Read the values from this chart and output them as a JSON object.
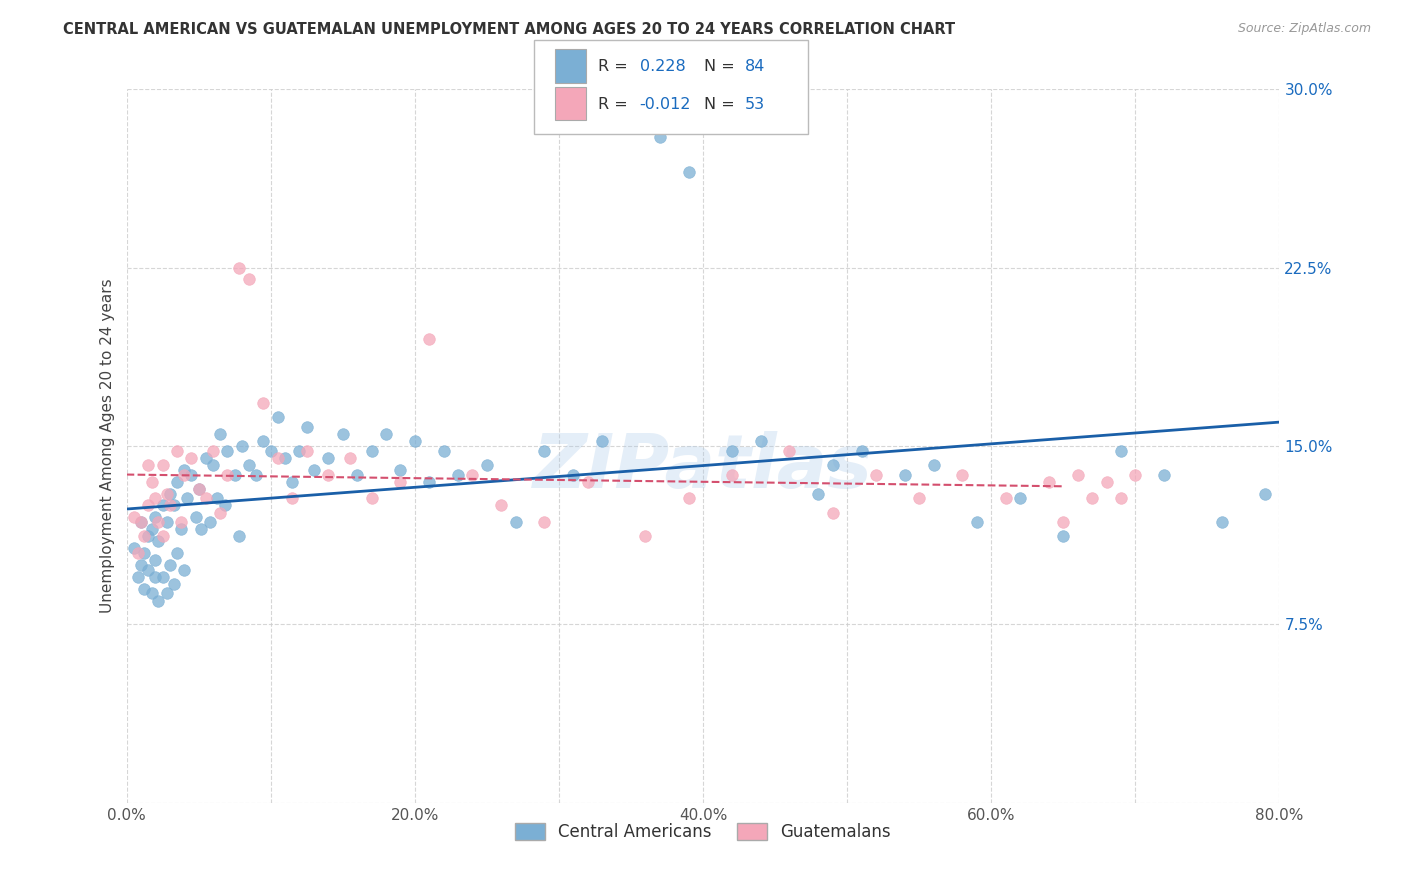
{
  "title": "CENTRAL AMERICAN VS GUATEMALAN UNEMPLOYMENT AMONG AGES 20 TO 24 YEARS CORRELATION CHART",
  "source": "Source: ZipAtlas.com",
  "ylabel": "Unemployment Among Ages 20 to 24 years",
  "xlim": [
    0,
    0.8
  ],
  "ylim": [
    0,
    0.3
  ],
  "xtick_vals": [
    0.0,
    0.1,
    0.2,
    0.3,
    0.4,
    0.5,
    0.6,
    0.7,
    0.8
  ],
  "xtick_labels": [
    "0.0%",
    "",
    "",
    "",
    "",
    "",
    "",
    "",
    "80.0%"
  ],
  "ytick_vals": [
    0.0,
    0.075,
    0.15,
    0.225,
    0.3
  ],
  "ytick_labels": [
    "",
    "7.5%",
    "15.0%",
    "22.5%",
    "30.0%"
  ],
  "blue_R": 0.228,
  "blue_N": 84,
  "pink_R": -0.012,
  "pink_N": 53,
  "blue_color": "#7bafd4",
  "pink_color": "#f4a7b9",
  "blue_line_color": "#1a5fa8",
  "pink_line_color": "#d44f6e",
  "background_color": "#ffffff",
  "grid_color": "#cccccc",
  "blue_scatter_x": [
    0.005,
    0.008,
    0.01,
    0.01,
    0.012,
    0.012,
    0.015,
    0.015,
    0.018,
    0.018,
    0.02,
    0.02,
    0.02,
    0.022,
    0.022,
    0.025,
    0.025,
    0.028,
    0.028,
    0.03,
    0.03,
    0.033,
    0.033,
    0.035,
    0.035,
    0.038,
    0.04,
    0.04,
    0.042,
    0.045,
    0.048,
    0.05,
    0.052,
    0.055,
    0.058,
    0.06,
    0.063,
    0.065,
    0.068,
    0.07,
    0.075,
    0.078,
    0.08,
    0.085,
    0.09,
    0.095,
    0.1,
    0.105,
    0.11,
    0.115,
    0.12,
    0.125,
    0.13,
    0.14,
    0.15,
    0.16,
    0.17,
    0.18,
    0.19,
    0.2,
    0.21,
    0.22,
    0.23,
    0.25,
    0.27,
    0.29,
    0.31,
    0.33,
    0.37,
    0.39,
    0.42,
    0.44,
    0.48,
    0.49,
    0.51,
    0.54,
    0.56,
    0.59,
    0.62,
    0.65,
    0.69,
    0.72,
    0.76,
    0.79
  ],
  "blue_scatter_y": [
    0.107,
    0.095,
    0.118,
    0.1,
    0.105,
    0.09,
    0.112,
    0.098,
    0.115,
    0.088,
    0.12,
    0.102,
    0.095,
    0.11,
    0.085,
    0.125,
    0.095,
    0.118,
    0.088,
    0.13,
    0.1,
    0.125,
    0.092,
    0.135,
    0.105,
    0.115,
    0.14,
    0.098,
    0.128,
    0.138,
    0.12,
    0.132,
    0.115,
    0.145,
    0.118,
    0.142,
    0.128,
    0.155,
    0.125,
    0.148,
    0.138,
    0.112,
    0.15,
    0.142,
    0.138,
    0.152,
    0.148,
    0.162,
    0.145,
    0.135,
    0.148,
    0.158,
    0.14,
    0.145,
    0.155,
    0.138,
    0.148,
    0.155,
    0.14,
    0.152,
    0.135,
    0.148,
    0.138,
    0.142,
    0.118,
    0.148,
    0.138,
    0.152,
    0.28,
    0.265,
    0.148,
    0.152,
    0.13,
    0.142,
    0.148,
    0.138,
    0.142,
    0.118,
    0.128,
    0.112,
    0.148,
    0.138,
    0.118,
    0.13
  ],
  "pink_scatter_x": [
    0.005,
    0.008,
    0.01,
    0.012,
    0.015,
    0.015,
    0.018,
    0.02,
    0.022,
    0.025,
    0.025,
    0.028,
    0.03,
    0.035,
    0.038,
    0.04,
    0.045,
    0.05,
    0.055,
    0.06,
    0.065,
    0.07,
    0.078,
    0.085,
    0.095,
    0.105,
    0.115,
    0.125,
    0.14,
    0.155,
    0.17,
    0.19,
    0.21,
    0.24,
    0.26,
    0.29,
    0.32,
    0.36,
    0.39,
    0.42,
    0.46,
    0.49,
    0.52,
    0.55,
    0.58,
    0.61,
    0.64,
    0.65,
    0.66,
    0.67,
    0.68,
    0.69,
    0.7
  ],
  "pink_scatter_y": [
    0.12,
    0.105,
    0.118,
    0.112,
    0.142,
    0.125,
    0.135,
    0.128,
    0.118,
    0.142,
    0.112,
    0.13,
    0.125,
    0.148,
    0.118,
    0.138,
    0.145,
    0.132,
    0.128,
    0.148,
    0.122,
    0.138,
    0.225,
    0.22,
    0.168,
    0.145,
    0.128,
    0.148,
    0.138,
    0.145,
    0.128,
    0.135,
    0.195,
    0.138,
    0.125,
    0.118,
    0.135,
    0.112,
    0.128,
    0.138,
    0.148,
    0.122,
    0.138,
    0.128,
    0.138,
    0.128,
    0.135,
    0.118,
    0.138,
    0.128,
    0.135,
    0.128,
    0.138
  ]
}
